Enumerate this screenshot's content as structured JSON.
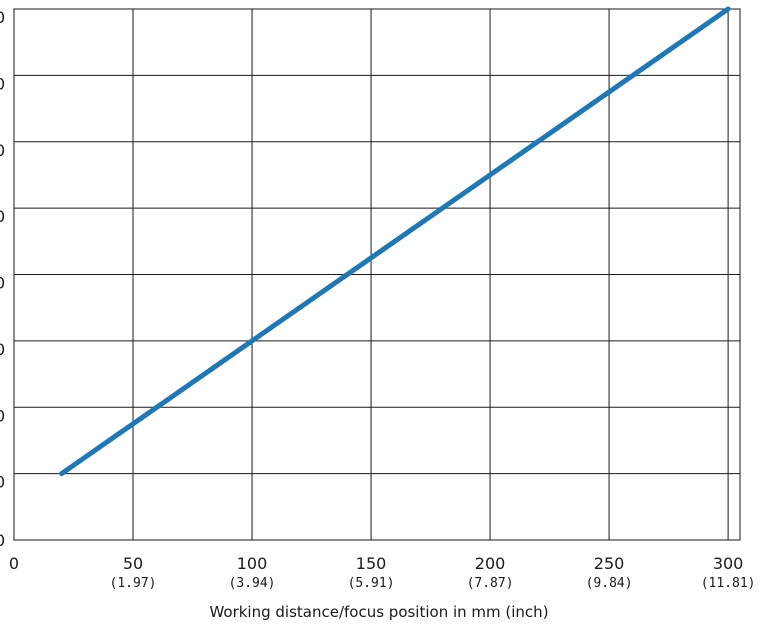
{
  "chart_data": {
    "type": "line",
    "title": "",
    "xlabel": "Working distance/focus position in mm (inch)",
    "ylabel": "",
    "xlim": [
      0,
      305
    ],
    "ylim": [
      0,
      8
    ],
    "grid": true,
    "color": "#1f77b4",
    "x_ticks": [
      {
        "value": 0,
        "label": "0",
        "sub": ""
      },
      {
        "value": 50,
        "label": "50",
        "sub": "(1.97)"
      },
      {
        "value": 100,
        "label": "100",
        "sub": "(3.94)"
      },
      {
        "value": 150,
        "label": "150",
        "sub": "(5.91)"
      },
      {
        "value": 200,
        "label": "200",
        "sub": "(7.87)"
      },
      {
        "value": 250,
        "label": "250",
        "sub": "(9.84)"
      },
      {
        "value": 300,
        "label": "300",
        "sub": "(11.81)"
      }
    ],
    "y_gridlines": [
      1,
      2,
      3,
      4,
      5,
      6,
      7,
      8
    ],
    "series": [
      {
        "x": [
          20,
          300
        ],
        "y": [
          1,
          8
        ]
      }
    ]
  }
}
